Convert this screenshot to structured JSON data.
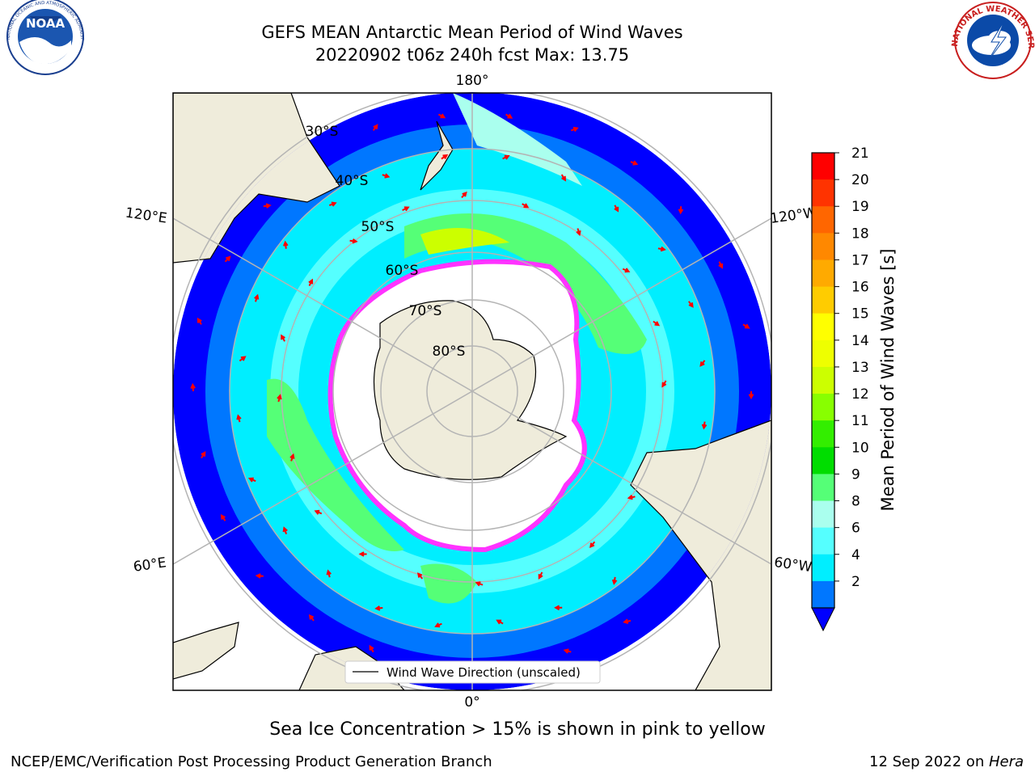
{
  "header": {
    "title_line1": "GEFS MEAN Antarctic Mean Period of Wind Waves",
    "title_line2": "20220902 t06z 240h fcst   Max: 13.75"
  },
  "logos": {
    "left": {
      "text": "NOAA",
      "ring_text": "NATIONAL OCEANIC AND ATMOSPHERIC ADMINISTRATION · U.S. DEPARTMENT OF COMMERCE",
      "icon": "noaa-logo-icon"
    },
    "right": {
      "ring_text": "NATIONAL WEATHER SERVICE",
      "icon": "nws-logo-icon"
    }
  },
  "map": {
    "projection": "south-polar-stereographic",
    "longitude_labels": {
      "top": "180°",
      "bottom": "0°",
      "upper_left": "120°E",
      "upper_right": "120°W",
      "lower_left": "60°E",
      "lower_right": "60°W"
    },
    "latitude_labels": [
      "30°S",
      "40°S",
      "50°S",
      "60°S",
      "70°S",
      "80°S"
    ],
    "legend": "Wind Wave Direction (unscaled)",
    "colors": {
      "land": "#efecdb",
      "ocean_low": "#0000ff",
      "ocean_mid": "#00eeff",
      "ocean_high": "#33ee33",
      "sea_ice": "#ff33ff",
      "arrows": "#ff0000",
      "grid": "#b4b4b4"
    }
  },
  "colorbar": {
    "label": "Mean Period of Wind Waves [s]",
    "ticks": [
      "21",
      "20",
      "19",
      "18",
      "17",
      "16",
      "15",
      "14",
      "13",
      "12",
      "11",
      "10",
      "9",
      "8",
      "6",
      "4",
      "2"
    ],
    "colors": [
      "#ff0000",
      "#ff3300",
      "#ff6600",
      "#ff8800",
      "#ffaa00",
      "#ffcc00",
      "#ffff00",
      "#eeff00",
      "#ccff00",
      "#88ff00",
      "#33ee00",
      "#00dd00",
      "#55ff77",
      "#aaffee",
      "#55ffff",
      "#00eeff",
      "#0077ff"
    ],
    "extend_color": "#0000ff"
  },
  "footer": {
    "note": "Sea Ice Concentration > 15% is shown in pink to yellow",
    "credit": "NCEP/EMC/Verification Post Processing Product Generation Branch",
    "date_prefix": "12 Sep 2022 on ",
    "date_machine": "Hera"
  }
}
